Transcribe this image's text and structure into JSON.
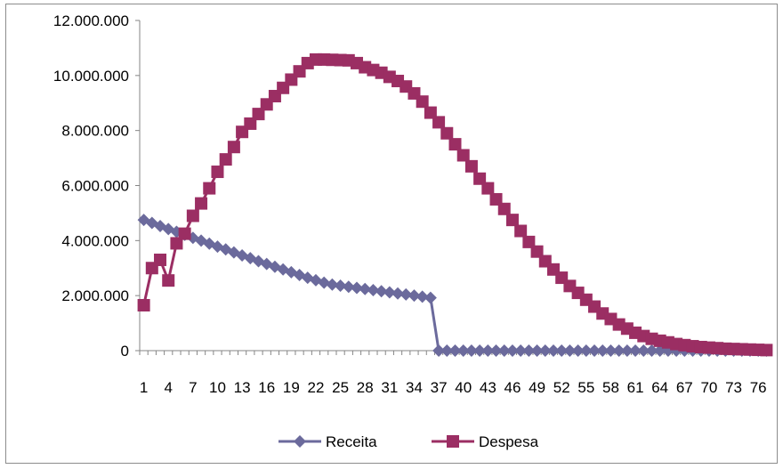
{
  "chart_data": {
    "type": "line",
    "title": "",
    "xlabel": "",
    "ylabel": "",
    "ylim": [
      0,
      12000000
    ],
    "yticks": [
      0,
      2000000,
      4000000,
      6000000,
      8000000,
      10000000,
      12000000
    ],
    "ytick_labels": [
      "0",
      "2.000.000",
      "4.000.000",
      "6.000.000",
      "8.000.000",
      "10.000.000",
      "12.000.000"
    ],
    "x": [
      1,
      2,
      3,
      4,
      5,
      6,
      7,
      8,
      9,
      10,
      11,
      12,
      13,
      14,
      15,
      16,
      17,
      18,
      19,
      20,
      21,
      22,
      23,
      24,
      25,
      26,
      27,
      28,
      29,
      30,
      31,
      32,
      33,
      34,
      35,
      36,
      37,
      38,
      39,
      40,
      41,
      42,
      43,
      44,
      45,
      46,
      47,
      48,
      49,
      50,
      51,
      52,
      53,
      54,
      55,
      56,
      57,
      58,
      59,
      60,
      61,
      62,
      63,
      64,
      65,
      66,
      67,
      68,
      69,
      70,
      71,
      72,
      73,
      74,
      75,
      76,
      77
    ],
    "xtick_labels": [
      "1",
      "4",
      "7",
      "10",
      "13",
      "16",
      "19",
      "22",
      "25",
      "28",
      "31",
      "34",
      "37",
      "40",
      "43",
      "46",
      "49",
      "52",
      "55",
      "58",
      "61",
      "64",
      "67",
      "70",
      "73",
      "76"
    ],
    "grid": false,
    "legend_position": "bottom",
    "series": [
      {
        "name": "Receita",
        "color": "#6b6a9c",
        "marker": "diamond",
        "values": [
          4750000,
          4640000,
          4530000,
          4420000,
          4320000,
          4210000,
          4100000,
          4000000,
          3890000,
          3780000,
          3680000,
          3570000,
          3460000,
          3360000,
          3250000,
          3150000,
          3050000,
          2950000,
          2850000,
          2750000,
          2650000,
          2560000,
          2470000,
          2400000,
          2360000,
          2320000,
          2280000,
          2240000,
          2200000,
          2160000,
          2120000,
          2080000,
          2040000,
          2000000,
          1960000,
          1920000,
          0,
          0,
          0,
          0,
          0,
          0,
          0,
          0,
          0,
          0,
          0,
          0,
          0,
          0,
          0,
          0,
          0,
          0,
          0,
          0,
          0,
          0,
          0,
          0,
          0,
          0,
          0,
          0,
          0,
          0,
          0,
          0,
          0,
          0,
          0,
          0,
          0,
          0,
          0,
          0,
          0
        ]
      },
      {
        "name": "Despesa",
        "color": "#9b2e63",
        "marker": "square",
        "values": [
          1650000,
          3000000,
          3300000,
          2550000,
          3900000,
          4250000,
          4900000,
          5350000,
          5900000,
          6500000,
          6950000,
          7400000,
          7950000,
          8250000,
          8600000,
          8950000,
          9250000,
          9550000,
          9850000,
          10150000,
          10450000,
          10580000,
          10580000,
          10570000,
          10560000,
          10550000,
          10450000,
          10300000,
          10200000,
          10100000,
          9950000,
          9800000,
          9600000,
          9350000,
          9050000,
          8650000,
          8300000,
          7900000,
          7500000,
          7100000,
          6700000,
          6250000,
          5900000,
          5500000,
          5150000,
          4750000,
          4350000,
          3950000,
          3600000,
          3250000,
          2950000,
          2650000,
          2350000,
          2100000,
          1850000,
          1600000,
          1350000,
          1150000,
          950000,
          800000,
          650000,
          530000,
          430000,
          360000,
          300000,
          240000,
          200000,
          160000,
          130000,
          110000,
          90000,
          70000,
          60000,
          50000,
          40000,
          30000,
          20000
        ]
      }
    ]
  }
}
